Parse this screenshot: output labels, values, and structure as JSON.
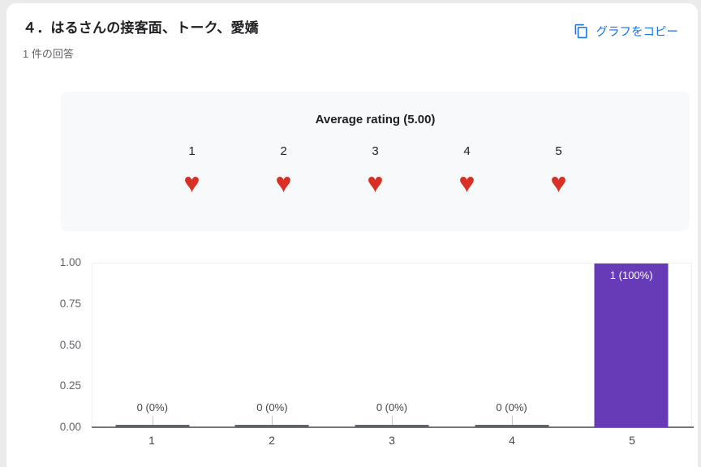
{
  "header": {
    "title": "４．はるさんの接客面、トーク、愛嬌",
    "response_count": "1 件の回答",
    "copy_button_label": "グラフをコピー"
  },
  "icons": {
    "copy_chart": "content-copy-icon",
    "heart_glyph": "♥"
  },
  "colors": {
    "accent_blue": "#1a73e8",
    "heart_red": "#d93025",
    "bar_purple": "#673ab7",
    "panel_gray": "#f8f9fa"
  },
  "rating_summary": {
    "title": "Average rating (5.00)",
    "scale": [
      "1",
      "2",
      "3",
      "4",
      "5"
    ]
  },
  "chart_data": {
    "type": "bar",
    "categories": [
      "1",
      "2",
      "3",
      "4",
      "5"
    ],
    "values": [
      0,
      0,
      0,
      0,
      1
    ],
    "value_labels": [
      "0 (0%)",
      "0 (0%)",
      "0 (0%)",
      "0 (0%)",
      "1 (100%)"
    ],
    "title": "",
    "xlabel": "",
    "ylabel": "",
    "ylim": [
      0,
      1
    ],
    "yticks": [
      "1.00",
      "0.75",
      "0.50",
      "0.25",
      "0.00"
    ],
    "grid": false,
    "legend": "none",
    "bar_color": "#673ab7"
  }
}
